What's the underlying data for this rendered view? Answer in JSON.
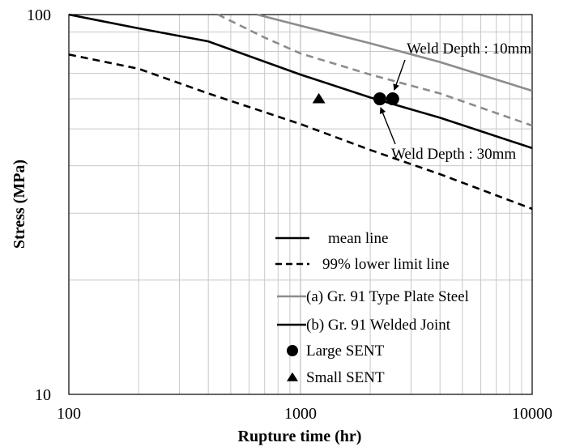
{
  "chart_data": {
    "type": "line",
    "title": "",
    "xlabel": "Rupture time (hr)",
    "ylabel": "Stress (MPa)",
    "xscale": "log",
    "yscale": "log",
    "xlim": [
      100,
      10000
    ],
    "ylim": [
      10,
      100
    ],
    "x_ticks": [
      100,
      1000,
      10000
    ],
    "x_tick_labels": [
      "100",
      "1000",
      "10000"
    ],
    "y_ticks": [
      10,
      100
    ],
    "y_tick_labels": [
      "10",
      "100"
    ],
    "grid": true,
    "colors": {
      "plate_steel": "#8c8c8c",
      "welded_joint": "#000000"
    },
    "series": [
      {
        "name": "(a) Gr. 91 Type Plate Steel",
        "kind": "mean",
        "color": "#8c8c8c",
        "dash": false,
        "x": [
          650,
          1000,
          2000,
          4000,
          10000
        ],
        "y": [
          100,
          93.5,
          84,
          75,
          63
        ]
      },
      {
        "name": "(a) Gr. 91 Type Plate Steel",
        "kind": "lower",
        "color": "#8c8c8c",
        "dash": true,
        "x": [
          440,
          700,
          1000,
          2000,
          4000,
          10000
        ],
        "y": [
          100,
          87,
          79,
          69.5,
          62,
          51
        ]
      },
      {
        "name": "(b) Gr. 91 Welded Joint",
        "kind": "mean",
        "color": "#000000",
        "dash": false,
        "x": [
          100,
          200,
          400,
          1000,
          2000,
          4000,
          10000
        ],
        "y": [
          100,
          92,
          85,
          69.5,
          60.5,
          53.5,
          44.5
        ]
      },
      {
        "name": "(b) Gr. 91 Welded Joint",
        "kind": "lower",
        "color": "#000000",
        "dash": true,
        "x": [
          100,
          200,
          400,
          1000,
          2000,
          4000,
          10000
        ],
        "y": [
          78.5,
          72,
          62,
          51.5,
          44,
          38,
          30.8
        ]
      }
    ],
    "points": [
      {
        "name": "Large SENT",
        "marker": "circle",
        "x": 2200,
        "y": 60
      },
      {
        "name": "Large SENT",
        "marker": "circle",
        "x": 2500,
        "y": 60
      },
      {
        "name": "Small SENT",
        "marker": "triangle",
        "x": 1200,
        "y": 60
      }
    ],
    "annotations": [
      {
        "text": "Weld Depth : 10mm",
        "target_x": 2500,
        "target_y": 60
      },
      {
        "text": "Weld Depth : 30mm",
        "target_x": 2200,
        "target_y": 60
      }
    ],
    "legend": {
      "placement": "bottom-center",
      "items": [
        {
          "label": "mean line",
          "style": "solid",
          "color": "#000000"
        },
        {
          "label": "99% lower limit  line",
          "style": "dashed",
          "color": "#000000"
        },
        {
          "label": "(a) Gr. 91 Type Plate Steel",
          "style": "solid",
          "color": "#8c8c8c"
        },
        {
          "label": "(b) Gr. 91 Welded Joint",
          "style": "solid",
          "color": "#000000"
        },
        {
          "label": "Large SENT",
          "style": "circle",
          "color": "#000000"
        },
        {
          "label": "Small SENT",
          "style": "triangle",
          "color": "#000000"
        }
      ]
    }
  }
}
